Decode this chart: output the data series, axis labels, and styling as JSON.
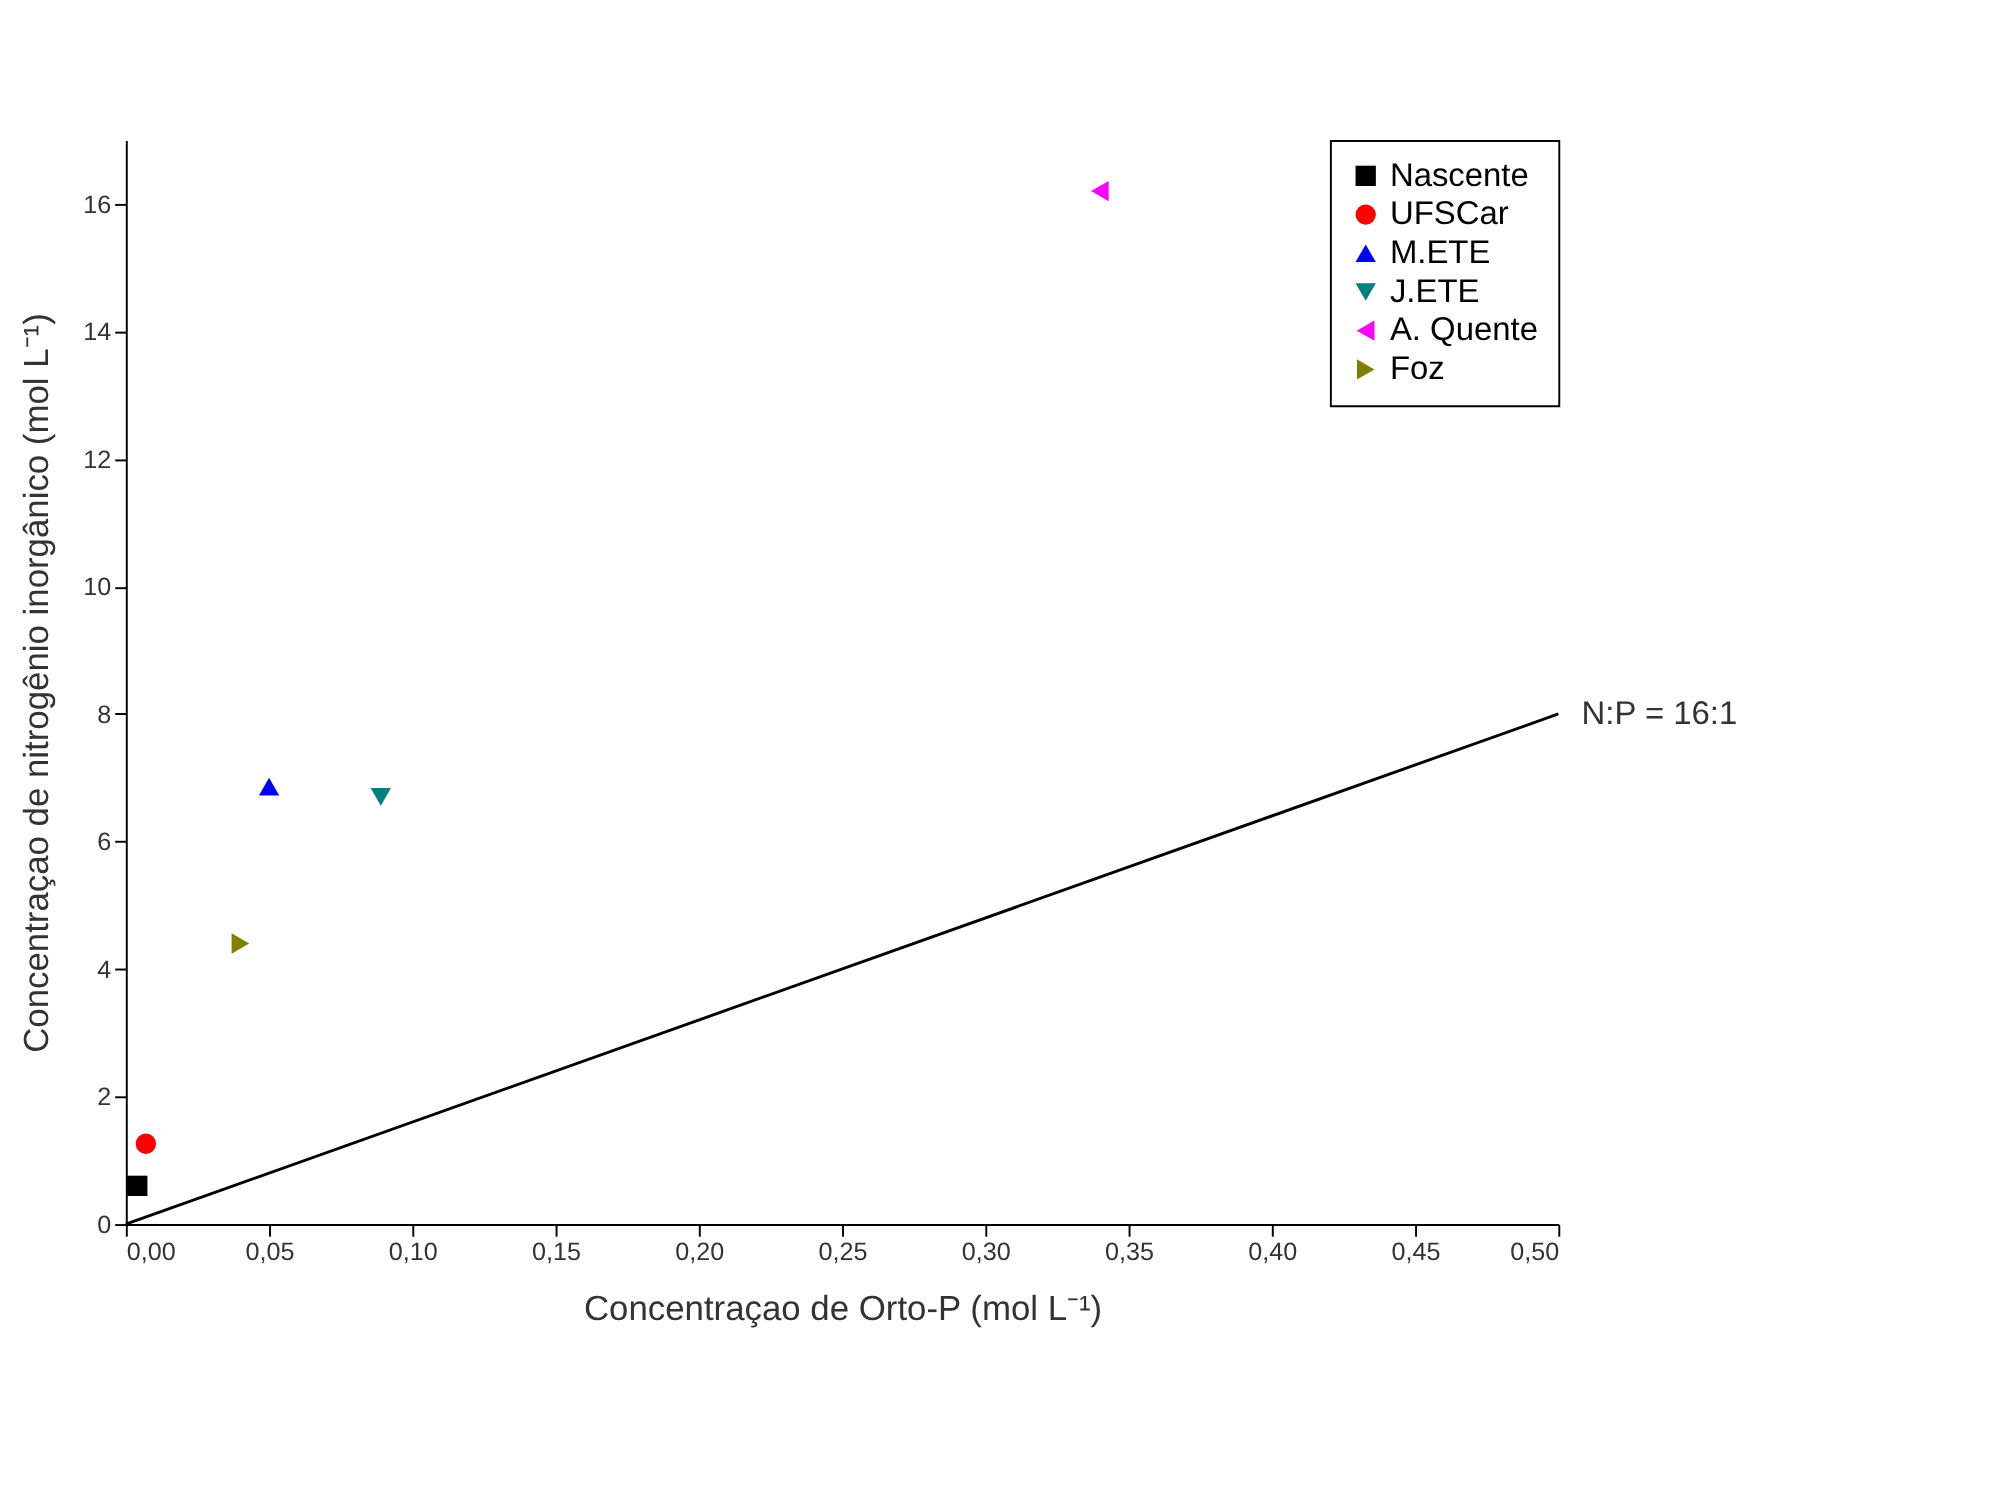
{
  "chart_data": {
    "type": "scatter",
    "xlabel": "Concentraçao de Orto-P (mol L⁻¹)",
    "ylabel": "Concentraçao de nitrogênio inorgânico  (mol L⁻¹)",
    "xlim": [
      0,
      0.5
    ],
    "ylim": [
      0,
      17
    ],
    "xticks": [
      {
        "value": 0,
        "label": "0,00"
      },
      {
        "value": 0.05,
        "label": "0,05"
      },
      {
        "value": 0.1,
        "label": "0,10"
      },
      {
        "value": 0.15,
        "label": "0,15"
      },
      {
        "value": 0.2,
        "label": "0,20"
      },
      {
        "value": 0.25,
        "label": "0,25"
      },
      {
        "value": 0.3,
        "label": "0,30"
      },
      {
        "value": 0.35,
        "label": "0,35"
      },
      {
        "value": 0.4,
        "label": "0,40"
      },
      {
        "value": 0.45,
        "label": "0,45"
      },
      {
        "value": 0.5,
        "label": "0,50"
      }
    ],
    "yticks": [
      0,
      2,
      4,
      6,
      8,
      10,
      12,
      14,
      16
    ],
    "grid": false,
    "legend": "top right",
    "series": [
      {
        "name": "Nascente",
        "color": "#000000",
        "marker": "square",
        "x": [
          0.004
        ],
        "values": [
          0.6
        ]
      },
      {
        "name": "UFSCar",
        "color": "#ff0000",
        "marker": "circle",
        "x": [
          0.007
        ],
        "values": [
          1.26
        ]
      },
      {
        "name": "M.ETE",
        "color": "#0000ff",
        "marker": "triangle",
        "x": [
          0.05
        ],
        "values": [
          6.86
        ]
      },
      {
        "name": "J.ETE",
        "color": "#008080",
        "marker": "triangle-down",
        "x": [
          0.089
        ],
        "values": [
          6.7
        ]
      },
      {
        "name": "A. Quente",
        "color": "#ff00ff",
        "marker": "triangle-left",
        "x": [
          0.34
        ],
        "values": [
          16.2
        ]
      },
      {
        "name": "Foz",
        "color": "#808000",
        "marker": "triangle-right",
        "x": [
          0.04
        ],
        "values": [
          4.4
        ]
      },
      {
        "name": "N:P = 16:1",
        "type": "line",
        "color": "#000000",
        "line_style": "solid",
        "marker": "none",
        "x": [
          0,
          0.5
        ],
        "values": [
          0,
          8
        ]
      }
    ]
  }
}
